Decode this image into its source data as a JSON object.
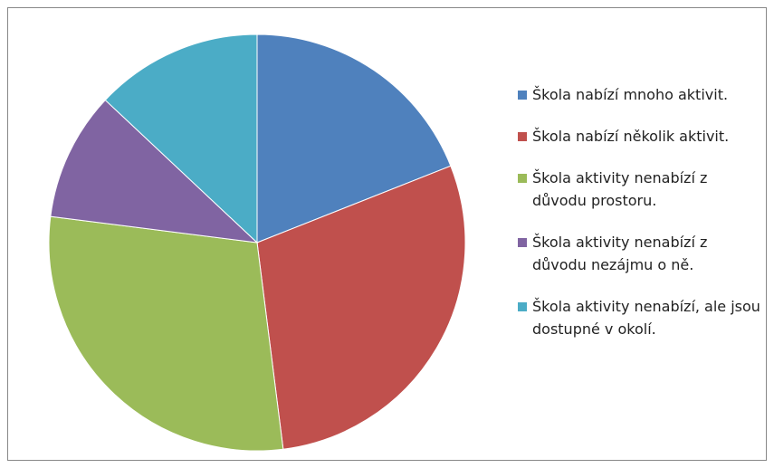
{
  "chart_data": {
    "type": "pie",
    "categories": [
      "Škola nabízí mnoho aktivit.",
      "Škola nabízí několik aktivit.",
      "Škola aktivity nenabízí z důvodu prostoru.",
      "Škola aktivity nenabízí z důvodu nezájmu o ně.",
      "Škola aktivity nenabízí, ale jsou dostupné v okolí."
    ],
    "values": [
      19,
      29,
      29,
      10,
      13
    ],
    "colors": [
      "#4f81bd",
      "#c0504d",
      "#9bbb59",
      "#8064a2",
      "#4bacc6"
    ],
    "legend": "right"
  }
}
